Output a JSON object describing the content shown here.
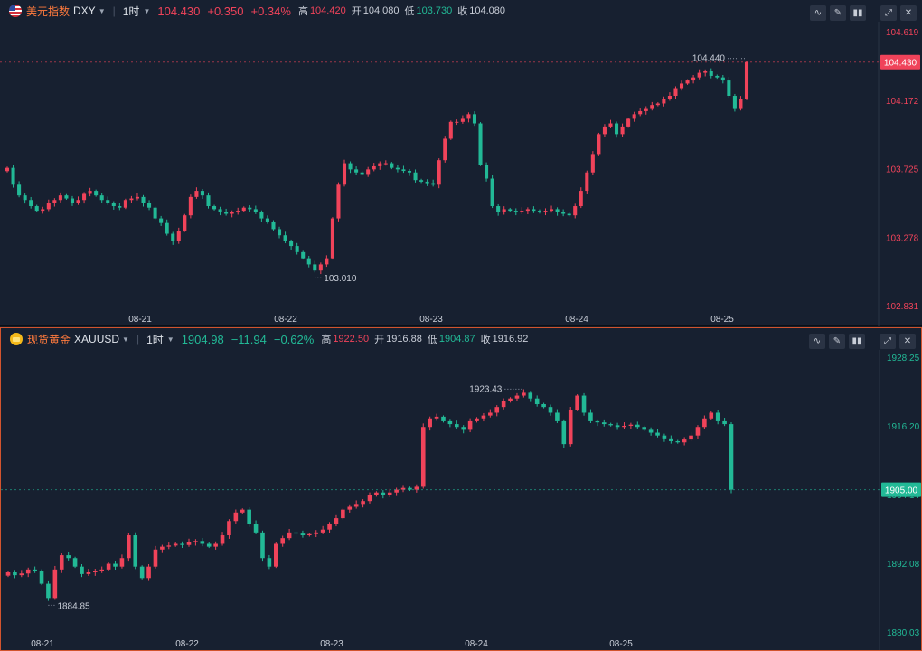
{
  "panes": [
    {
      "name": "美元指数",
      "code": "DXY",
      "interval": "1时",
      "price": "104.430",
      "change": "+0.350",
      "change_pct": "+0.34%",
      "high_label": "高",
      "high": "104.420",
      "open_label": "开",
      "open": "104.080",
      "low_label": "低",
      "low": "103.730",
      "close_label": "收",
      "close": "104.080",
      "price_badge": "104.430",
      "y_ticks": [
        "104.619",
        "104.172",
        "103.725",
        "103.278",
        "102.831"
      ],
      "x_labels": [
        "08-21",
        "08-22",
        "08-23",
        "08-24",
        "08-25"
      ],
      "max_annotation": "104.440",
      "min_annotation": "103.010",
      "colors": {
        "up": "#f0435a",
        "down": "#22b996"
      }
    },
    {
      "name": "现货黄金",
      "code": "XAUUSD",
      "interval": "1时",
      "price": "1904.98",
      "change": "−11.94",
      "change_pct": "−0.62%",
      "high_label": "高",
      "high": "1922.50",
      "open_label": "开",
      "open": "1916.88",
      "low_label": "低",
      "low": "1904.87",
      "close_label": "收",
      "close": "1916.92",
      "price_badge": "1905.00",
      "y_ticks": [
        "1928.25",
        "1916.20",
        "1904.14",
        "1892.08",
        "1880.03"
      ],
      "x_labels": [
        "08-21",
        "08-22",
        "08-23",
        "08-24",
        "08-25"
      ],
      "max_annotation": "1923.43",
      "min_annotation": "1884.85",
      "colors": {
        "up": "#f0435a",
        "down": "#22b996"
      }
    }
  ],
  "chart_data": [
    {
      "type": "candlestick",
      "series_label": "DXY",
      "ylim": [
        102.831,
        104.619
      ],
      "x_categories": [
        "08-21",
        "08-22",
        "08-23",
        "08-24",
        "08-25"
      ],
      "close_path": [
        103.73,
        103.62,
        103.55,
        103.52,
        103.48,
        103.45,
        103.46,
        103.5,
        103.52,
        103.55,
        103.53,
        103.5,
        103.52,
        103.56,
        103.58,
        103.55,
        103.52,
        103.5,
        103.48,
        103.47,
        103.52,
        103.53,
        103.54,
        103.5,
        103.47,
        103.4,
        103.37,
        103.3,
        103.25,
        103.32,
        103.42,
        103.54,
        103.58,
        103.55,
        103.48,
        103.46,
        103.44,
        103.43,
        103.44,
        103.45,
        103.47,
        103.46,
        103.44,
        103.4,
        103.38,
        103.33,
        103.29,
        103.25,
        103.22,
        103.18,
        103.14,
        103.1,
        103.06,
        103.1,
        103.14,
        103.4,
        103.62,
        103.76,
        103.72,
        103.7,
        103.69,
        103.72,
        103.74,
        103.76,
        103.76,
        103.73,
        103.72,
        103.71,
        103.7,
        103.65,
        103.64,
        103.63,
        103.62,
        103.78,
        103.92,
        104.03,
        104.03,
        104.05,
        104.08,
        104.02,
        103.75,
        103.66,
        103.48,
        103.44,
        103.46,
        103.45,
        103.44,
        103.45,
        103.46,
        103.45,
        103.44,
        103.45,
        103.46,
        103.44,
        103.43,
        103.42,
        103.48,
        103.58,
        103.7,
        103.82,
        103.95,
        104.0,
        104.02,
        103.95,
        104.0,
        104.05,
        104.08,
        104.1,
        104.12,
        104.14,
        104.15,
        104.18,
        104.2,
        104.25,
        104.28,
        104.3,
        104.32,
        104.35,
        104.36,
        104.33,
        104.32,
        104.3,
        104.2,
        104.12,
        104.18,
        104.42
      ],
      "max_annotation": "104.440",
      "min_annotation": "103.010"
    },
    {
      "type": "candlestick",
      "series_label": "XAUUSD",
      "ylim": [
        1880.03,
        1928.25
      ],
      "x_categories": [
        "08-21",
        "08-22",
        "08-23",
        "08-24",
        "08-25"
      ],
      "close_path": [
        1890.5,
        1890.0,
        1890.3,
        1891.0,
        1890.8,
        1888.5,
        1886.0,
        1891.0,
        1893.5,
        1893.0,
        1891.5,
        1890.2,
        1890.5,
        1890.8,
        1891.0,
        1892.0,
        1891.5,
        1893.0,
        1897.0,
        1891.5,
        1889.5,
        1891.5,
        1894.5,
        1895.0,
        1895.2,
        1895.5,
        1895.3,
        1895.8,
        1896.0,
        1895.5,
        1895.0,
        1895.5,
        1897.0,
        1899.5,
        1901.0,
        1901.5,
        1899.0,
        1897.5,
        1893.0,
        1891.5,
        1895.5,
        1896.5,
        1897.5,
        1897.3,
        1897.0,
        1897.2,
        1897.5,
        1898.0,
        1899.0,
        1900.0,
        1901.5,
        1902.0,
        1902.5,
        1903.0,
        1904.0,
        1904.5,
        1904.0,
        1904.5,
        1905.0,
        1905.3,
        1905.0,
        1905.5,
        1916.0,
        1917.5,
        1917.8,
        1917.0,
        1916.5,
        1916.0,
        1915.5,
        1917.0,
        1917.5,
        1918.0,
        1918.5,
        1919.5,
        1920.5,
        1921.0,
        1921.5,
        1922.0,
        1921.0,
        1920.0,
        1919.5,
        1918.5,
        1917.0,
        1913.0,
        1919.0,
        1921.5,
        1918.5,
        1917.0,
        1916.8,
        1916.5,
        1916.3,
        1916.0,
        1916.2,
        1916.4,
        1916.0,
        1915.5,
        1915.0,
        1914.5,
        1914.0,
        1913.5,
        1913.3,
        1913.8,
        1914.5,
        1916.0,
        1917.5,
        1918.5,
        1917.0,
        1916.5,
        1905.0
      ],
      "max_annotation": "1923.43",
      "min_annotation": "1884.85"
    }
  ]
}
